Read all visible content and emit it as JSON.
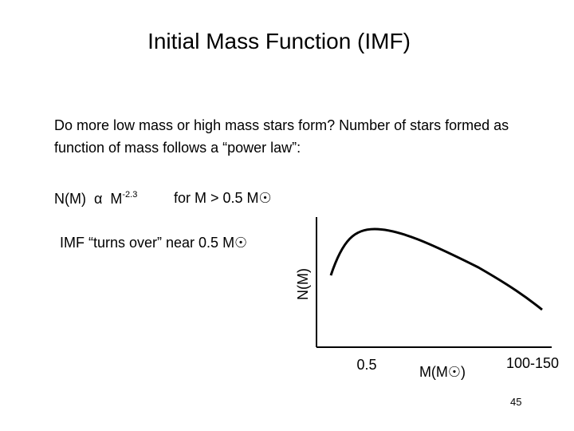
{
  "title": "Initial Mass Function (IMF)",
  "body": {
    "question": "Do more low mass or high mass stars form?  Number of stars formed as function of mass follows a “power law”:",
    "power_law": {
      "base": "N(M)  α  M",
      "exponent": "-2.3",
      "condition": "for M > 0.5 M☉"
    },
    "turnover": "IMF “turns over” near 0.5 M☉"
  },
  "diagram": {
    "y_axis_label": "N(M)",
    "x_labels": [
      "0.5",
      "M(M☉)",
      "100-150"
    ]
  },
  "page_number": "45"
}
